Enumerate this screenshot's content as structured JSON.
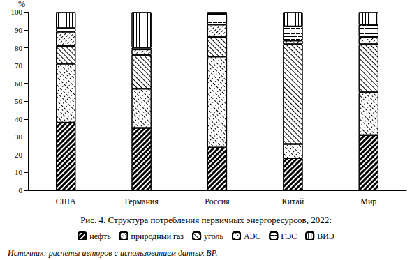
{
  "chart_data": {
    "type": "bar",
    "title": "Рис. 4. Структура потребления первичных энергоресурсов, 2022:",
    "source": "Источник: расчеты авторов с использованием данных BP.",
    "y_label": "%",
    "categories": [
      "США",
      "Германия",
      "Россия",
      "Китай",
      "Мир"
    ],
    "series": [
      {
        "name": "нефть",
        "color": "#000000",
        "values": [
          38,
          35,
          24,
          18,
          31
        ]
      },
      {
        "name": "природный газ",
        "color": "#000000",
        "values": [
          33,
          22,
          51,
          8,
          24
        ]
      },
      {
        "name": "уголь",
        "color": "#000000",
        "values": [
          10,
          19,
          11,
          56,
          27
        ]
      },
      {
        "name": "АЭС",
        "color": "#000000",
        "values": [
          8,
          3,
          7,
          2,
          4
        ]
      },
      {
        "name": "ГЭС",
        "color": "#000000",
        "values": [
          2,
          1,
          6,
          8,
          7
        ]
      },
      {
        "name": "ВИЭ",
        "color": "#000000",
        "values": [
          9,
          20,
          1,
          8,
          7
        ]
      }
    ],
    "ylim": [
      0,
      100
    ],
    "yticks": [
      0,
      10,
      20,
      30,
      40,
      50,
      60,
      70,
      80,
      90,
      100
    ],
    "stacked": true,
    "grid": false,
    "legend": "bottom"
  }
}
